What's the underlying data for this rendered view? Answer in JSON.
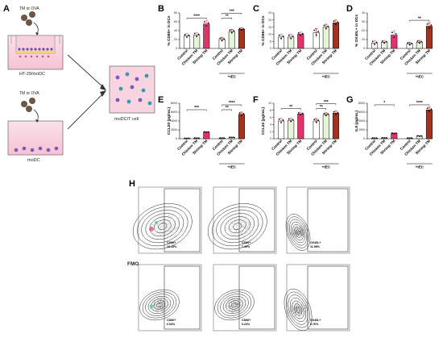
{
  "panels": {
    "A": "A",
    "B": "B",
    "C": "C",
    "D": "D",
    "E": "E",
    "F": "F",
    "G": "G",
    "H": "H"
  },
  "schematic": {
    "well_top_label": "TM or OVA",
    "well_top_name": "HT-29/moDC",
    "well_bottom_label": "TM or OVA",
    "well_bottom_name": "moDC",
    "well_right_name": "moDC/T cell"
  },
  "categories": [
    "Control",
    "Chicken TM",
    "Shrimp TM",
    "Control",
    "Chicken TM",
    "Shrimp TM"
  ],
  "iec_label": "+IEC",
  "colors": {
    "control": "#ffffff",
    "chicken": "#e6f5d8",
    "shrimp_noiec": "#e0336a",
    "shrimp_iec": "#a3321e",
    "err_noiec": "#e36fa8",
    "err_iec": "#a3321e"
  },
  "chart_data": [
    {
      "id": "B",
      "type": "bar",
      "ylabel": "% CD80+ in DCs",
      "ylim": [
        0,
        80
      ],
      "yticks": [
        0,
        20,
        40,
        60,
        80
      ],
      "categories": [
        "Control",
        "Chicken TM",
        "Shrimp TM",
        "Control",
        "Chicken TM",
        "Shrimp TM"
      ],
      "values": [
        28,
        30,
        55,
        20,
        38,
        43
      ],
      "errors": [
        5,
        6,
        8,
        5,
        5,
        3
      ],
      "sig": [
        {
          "from": 0,
          "to": 2,
          "label": "****",
          "level": 0
        },
        {
          "from": 3,
          "to": 4,
          "label": "**",
          "level": 0
        },
        {
          "from": 3,
          "to": 5,
          "label": "***",
          "level": 1
        }
      ]
    },
    {
      "id": "C",
      "type": "bar",
      "ylabel": "% CD86+ in DCs",
      "ylim": [
        0,
        25
      ],
      "yticks": [
        0,
        5,
        10,
        15,
        20,
        25
      ],
      "categories": [
        "Control",
        "Chicken TM",
        "Shrimp TM",
        "Control",
        "Chicken TM",
        "Shrimp TM"
      ],
      "values": [
        8,
        8,
        10,
        11,
        15,
        18
      ],
      "errors": [
        2,
        2,
        1.5,
        3,
        2,
        2
      ],
      "sig": []
    },
    {
      "id": "D",
      "type": "bar",
      "ylabel": "% OX40L+ in DCs",
      "ylim": [
        0,
        40
      ],
      "yticks": [
        0,
        10,
        20,
        30,
        40
      ],
      "categories": [
        "Control",
        "Chicken TM",
        "Shrimp TM",
        "Control",
        "Chicken TM",
        "Shrimp TM"
      ],
      "values": [
        6,
        7,
        15,
        5,
        7,
        25
      ],
      "errors": [
        3,
        2,
        5,
        2,
        2,
        4
      ],
      "sig": [
        {
          "from": 3,
          "to": 5,
          "label": "**",
          "level": 0
        }
      ]
    },
    {
      "id": "E",
      "type": "bar",
      "ylabel": "CCL20 (pg/mL)",
      "ylim": [
        0,
        8000
      ],
      "yticks": [
        0,
        2000,
        4000,
        6000,
        8000
      ],
      "categories": [
        "Control",
        "Chicken TM",
        "Shrimp TM",
        "Control",
        "Chicken TM",
        "Shrimp TM"
      ],
      "values": [
        100,
        150,
        1500,
        150,
        300,
        5500
      ],
      "errors": [
        30,
        40,
        100,
        30,
        50,
        500
      ],
      "sig": [
        {
          "from": 0,
          "to": 2,
          "label": "***",
          "level": 0
        },
        {
          "from": 3,
          "to": 4,
          "label": "**",
          "level": 0
        },
        {
          "from": 3,
          "to": 5,
          "label": "****",
          "level": 1
        }
      ]
    },
    {
      "id": "F",
      "type": "bar",
      "ylabel": "CCL22 (pg/mL)",
      "ylim": [
        0,
        10
      ],
      "yticks": [
        0,
        2,
        4,
        6,
        8,
        10
      ],
      "categories": [
        "Control",
        "Chicken TM",
        "Shrimp TM",
        "Control",
        "Chicken TM",
        "Shrimp TM"
      ],
      "values": [
        5,
        5.2,
        7,
        5,
        6.8,
        7.2
      ],
      "errors": [
        0.8,
        0.6,
        0.5,
        0.7,
        0.5,
        0.6
      ],
      "sig": [
        {
          "from": 0,
          "to": 2,
          "label": "**",
          "level": 0
        },
        {
          "from": 3,
          "to": 4,
          "label": "**",
          "level": 0
        },
        {
          "from": 3,
          "to": 5,
          "label": "***",
          "level": 1
        }
      ]
    },
    {
      "id": "G",
      "type": "bar",
      "ylabel": "IL8 (pg/mL)",
      "ylim": [
        0,
        8000
      ],
      "yticks": [
        0,
        2000,
        4000,
        6000,
        8000
      ],
      "categories": [
        "Control",
        "Chicken TM",
        "Shrimp TM",
        "Control",
        "Chicken TM",
        "Shrimp TM"
      ],
      "values": [
        150,
        200,
        1200,
        150,
        600,
        6500
      ],
      "errors": [
        40,
        50,
        150,
        40,
        80,
        600
      ],
      "sig": [
        {
          "from": 0,
          "to": 2,
          "label": "*",
          "level": 0
        },
        {
          "from": 3,
          "to": 5,
          "label": "****",
          "level": 0
        }
      ]
    }
  ],
  "flow": {
    "row1_label": "",
    "row2_label": "FMO",
    "gates": [
      {
        "name": "CD80+",
        "pct": "23.15%"
      },
      {
        "name": "CD86+",
        "pct": "7.49%"
      },
      {
        "name": "OX40L+",
        "pct": "11.98%"
      },
      {
        "name": "CD80+",
        "pct": "0.94%"
      },
      {
        "name": "CD86+",
        "pct": "0.24%"
      },
      {
        "name": "OX40L+",
        "pct": "0.76%"
      }
    ]
  }
}
